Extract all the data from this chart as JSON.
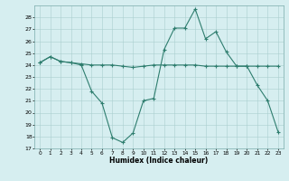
{
  "xlabel": "Humidex (Indice chaleur)",
  "x": [
    0,
    1,
    2,
    3,
    4,
    5,
    6,
    7,
    8,
    9,
    10,
    11,
    12,
    13,
    14,
    15,
    16,
    17,
    18,
    19,
    20,
    21,
    22,
    23
  ],
  "line1": [
    24.2,
    24.7,
    24.3,
    24.2,
    24.1,
    24.0,
    24.0,
    24.0,
    23.9,
    23.8,
    23.9,
    24.0,
    24.0,
    24.0,
    24.0,
    24.0,
    23.9,
    23.9,
    23.9,
    23.9,
    23.9,
    23.9,
    23.9,
    23.9
  ],
  "line2": [
    24.2,
    24.7,
    24.3,
    24.2,
    24.0,
    21.8,
    20.8,
    17.9,
    17.5,
    18.3,
    21.0,
    21.2,
    25.3,
    27.1,
    27.1,
    28.7,
    26.2,
    26.8,
    25.1,
    23.9,
    23.9,
    22.3,
    21.0,
    18.4
  ],
  "bg_color": "#d6eef0",
  "line_color": "#2e7d6e",
  "grid_color": "#aacfcf",
  "ylim": [
    17,
    29
  ],
  "yticks": [
    17,
    18,
    19,
    20,
    21,
    22,
    23,
    24,
    25,
    26,
    27,
    28
  ],
  "xticks": [
    0,
    1,
    2,
    3,
    4,
    5,
    6,
    7,
    8,
    9,
    10,
    11,
    12,
    13,
    14,
    15,
    16,
    17,
    18,
    19,
    20,
    21,
    22,
    23
  ]
}
